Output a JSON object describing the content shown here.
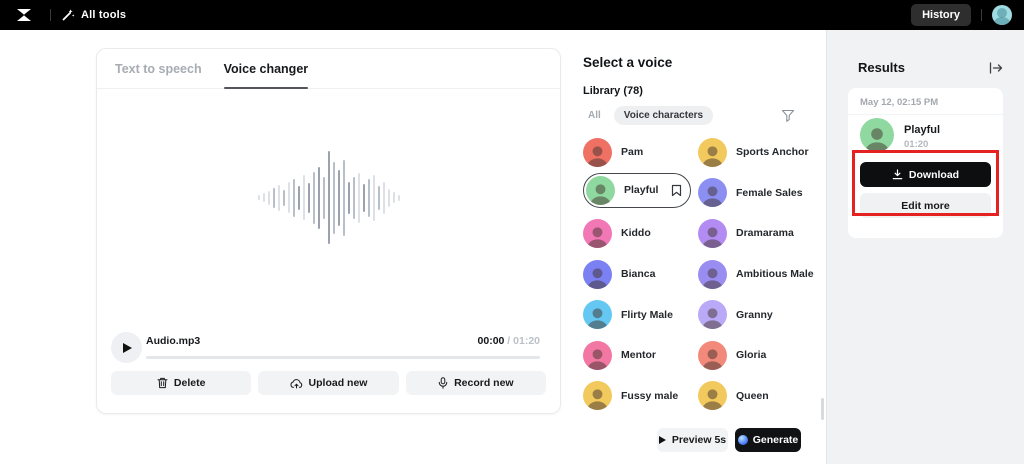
{
  "topbar": {
    "all_tools_label": "All tools",
    "history_label": "History"
  },
  "left_panel": {
    "tabs": [
      {
        "label": "Text to speech",
        "active": false
      },
      {
        "label": "Voice changer",
        "active": true
      }
    ],
    "player": {
      "filename": "Audio.mp3",
      "current_time": "00:00",
      "separator": " / ",
      "duration": "01:20",
      "progress_percent": 0
    },
    "actions": [
      {
        "label": "Delete",
        "icon": "trash-icon"
      },
      {
        "label": "Upload new",
        "icon": "upload-cloud-icon"
      },
      {
        "label": "Record new",
        "icon": "microphone-icon"
      }
    ],
    "waveform": {
      "heights": [
        5,
        9,
        14,
        20,
        26,
        16,
        31,
        38,
        24,
        45,
        30,
        52,
        62,
        42,
        93,
        72,
        56,
        76,
        32,
        42,
        50,
        28,
        38,
        46,
        24,
        32,
        18,
        11,
        6
      ],
      "shades": [
        0,
        0,
        0,
        1,
        0,
        1,
        0,
        1,
        2,
        0,
        2,
        1,
        2,
        1,
        2,
        1,
        2,
        1,
        2,
        1,
        0,
        2,
        1,
        0,
        1,
        0,
        0,
        0,
        0
      ],
      "palette": [
        "#dde1e7",
        "#b7bfc9",
        "#99a2ad"
      ]
    }
  },
  "voice_panel": {
    "title": "Select a voice",
    "library_label": "Library (78)",
    "filters": [
      {
        "label": "All",
        "active": false
      },
      {
        "label": "Voice characters",
        "active": true
      }
    ],
    "voices": [
      {
        "name": "Pam",
        "color": "#ee7164",
        "selected": false
      },
      {
        "name": "Sports Anchor",
        "color": "#f2c95c",
        "selected": false
      },
      {
        "name": "Playful",
        "color": "#8fd89f",
        "selected": true
      },
      {
        "name": "Female Sales",
        "color": "#8b8ff2",
        "selected": false
      },
      {
        "name": "Kiddo",
        "color": "#f277b5",
        "selected": false
      },
      {
        "name": "Dramarama",
        "color": "#b28cf2",
        "selected": false
      },
      {
        "name": "Bianca",
        "color": "#7b80f2",
        "selected": false
      },
      {
        "name": "Ambitious Male",
        "color": "#9a8df2",
        "selected": false
      },
      {
        "name": "Flirty Male",
        "color": "#64c8f2",
        "selected": false
      },
      {
        "name": "Granny",
        "color": "#b9a9f7",
        "selected": false
      },
      {
        "name": "Mentor",
        "color": "#f277a3",
        "selected": false
      },
      {
        "name": "Gloria",
        "color": "#f2897a",
        "selected": false
      },
      {
        "name": "Fussy male",
        "color": "#f2c95c",
        "selected": false
      },
      {
        "name": "Queen",
        "color": "#f2c95c",
        "selected": false
      }
    ],
    "preview_label": "Preview 5s",
    "generate_label": "Generate"
  },
  "results_panel": {
    "title": "Results",
    "timestamp": "May 12, 02:15 PM",
    "result": {
      "name": "Playful",
      "duration": "01:20"
    },
    "download_label": "Download",
    "edit_more_label": "Edit more"
  },
  "colors": {
    "topbar_bg": "#000000",
    "annotation_red": "#e42222",
    "generate_bg": "#101214",
    "panel_bg": "#f1f2f4",
    "selected_pill_border": "#44484d"
  }
}
